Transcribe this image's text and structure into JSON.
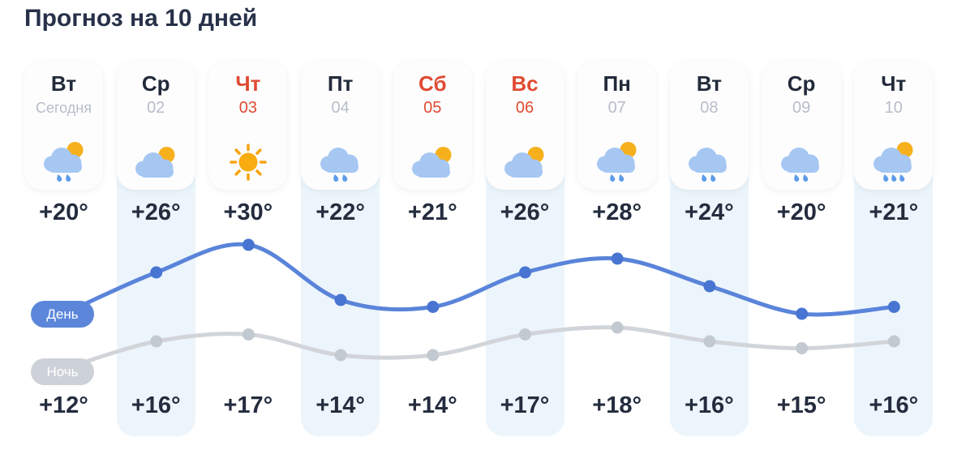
{
  "title": "Прогноз на 10 дней",
  "legend": {
    "day_label": "День",
    "night_label": "Ночь"
  },
  "colors": {
    "title_text": "#273149",
    "weekend_red": "#e04a32",
    "muted_gray": "#b7bdc9",
    "temp_text": "#242c3e",
    "column_band": "#ecf5fb",
    "day_line": "#5a84da",
    "day_dot": "#4875d1",
    "night_line": "#d1d5d9",
    "night_dot": "#c3c9d0",
    "cloud": "#a6c7f2",
    "sun": "#f6b01c",
    "raindrop": "#5e9ce9"
  },
  "columns": [
    {
      "day": "Вт",
      "date": "Сегодня",
      "today": true,
      "weekend": false,
      "band": false,
      "icon": "rain-sun",
      "day_temp": "+20°",
      "night_temp": "+12°"
    },
    {
      "day": "Ср",
      "date": "02",
      "today": false,
      "weekend": false,
      "band": true,
      "icon": "cloud-sun",
      "day_temp": "+26°",
      "night_temp": "+16°"
    },
    {
      "day": "Чт",
      "date": "03",
      "today": false,
      "weekend": true,
      "band": false,
      "icon": "sun",
      "day_temp": "+30°",
      "night_temp": "+17°"
    },
    {
      "day": "Пт",
      "date": "04",
      "today": false,
      "weekend": false,
      "band": true,
      "icon": "rain",
      "day_temp": "+22°",
      "night_temp": "+14°"
    },
    {
      "day": "Сб",
      "date": "05",
      "today": false,
      "weekend": true,
      "band": false,
      "icon": "cloud-sun",
      "day_temp": "+21°",
      "night_temp": "+14°"
    },
    {
      "day": "Вс",
      "date": "06",
      "today": false,
      "weekend": true,
      "band": true,
      "icon": "cloud-sun",
      "day_temp": "+26°",
      "night_temp": "+17°"
    },
    {
      "day": "Пн",
      "date": "07",
      "today": false,
      "weekend": false,
      "band": false,
      "icon": "rain-sun",
      "day_temp": "+28°",
      "night_temp": "+18°"
    },
    {
      "day": "Вт",
      "date": "08",
      "today": false,
      "weekend": false,
      "band": true,
      "icon": "rain",
      "day_temp": "+24°",
      "night_temp": "+16°"
    },
    {
      "day": "Ср",
      "date": "09",
      "today": false,
      "weekend": false,
      "band": false,
      "icon": "rain",
      "day_temp": "+20°",
      "night_temp": "+15°"
    },
    {
      "day": "Чт",
      "date": "10",
      "today": false,
      "weekend": false,
      "band": true,
      "icon": "rain-sun-3",
      "day_temp": "+21°",
      "night_temp": "+16°"
    }
  ],
  "chart_data": {
    "type": "line",
    "categories": [
      "Вт",
      "Ср",
      "Чт",
      "Пт",
      "Сб",
      "Вс",
      "Пн",
      "Вт",
      "Ср",
      "Чт"
    ],
    "category_dates": [
      "Сегодня",
      "02",
      "03",
      "04",
      "05",
      "06",
      "07",
      "08",
      "09",
      "10"
    ],
    "series": [
      {
        "name": "День",
        "values": [
          20,
          26,
          30,
          22,
          21,
          26,
          28,
          24,
          20,
          21
        ],
        "color": "#5a84da"
      },
      {
        "name": "Ночь",
        "values": [
          12,
          16,
          17,
          14,
          14,
          17,
          18,
          16,
          15,
          16
        ],
        "color": "#d1d5d9"
      }
    ],
    "unit": "°C",
    "ylim": [
      10,
      32
    ],
    "grid": false,
    "legend_position": "left",
    "title": "Прогноз на 10 дней"
  }
}
